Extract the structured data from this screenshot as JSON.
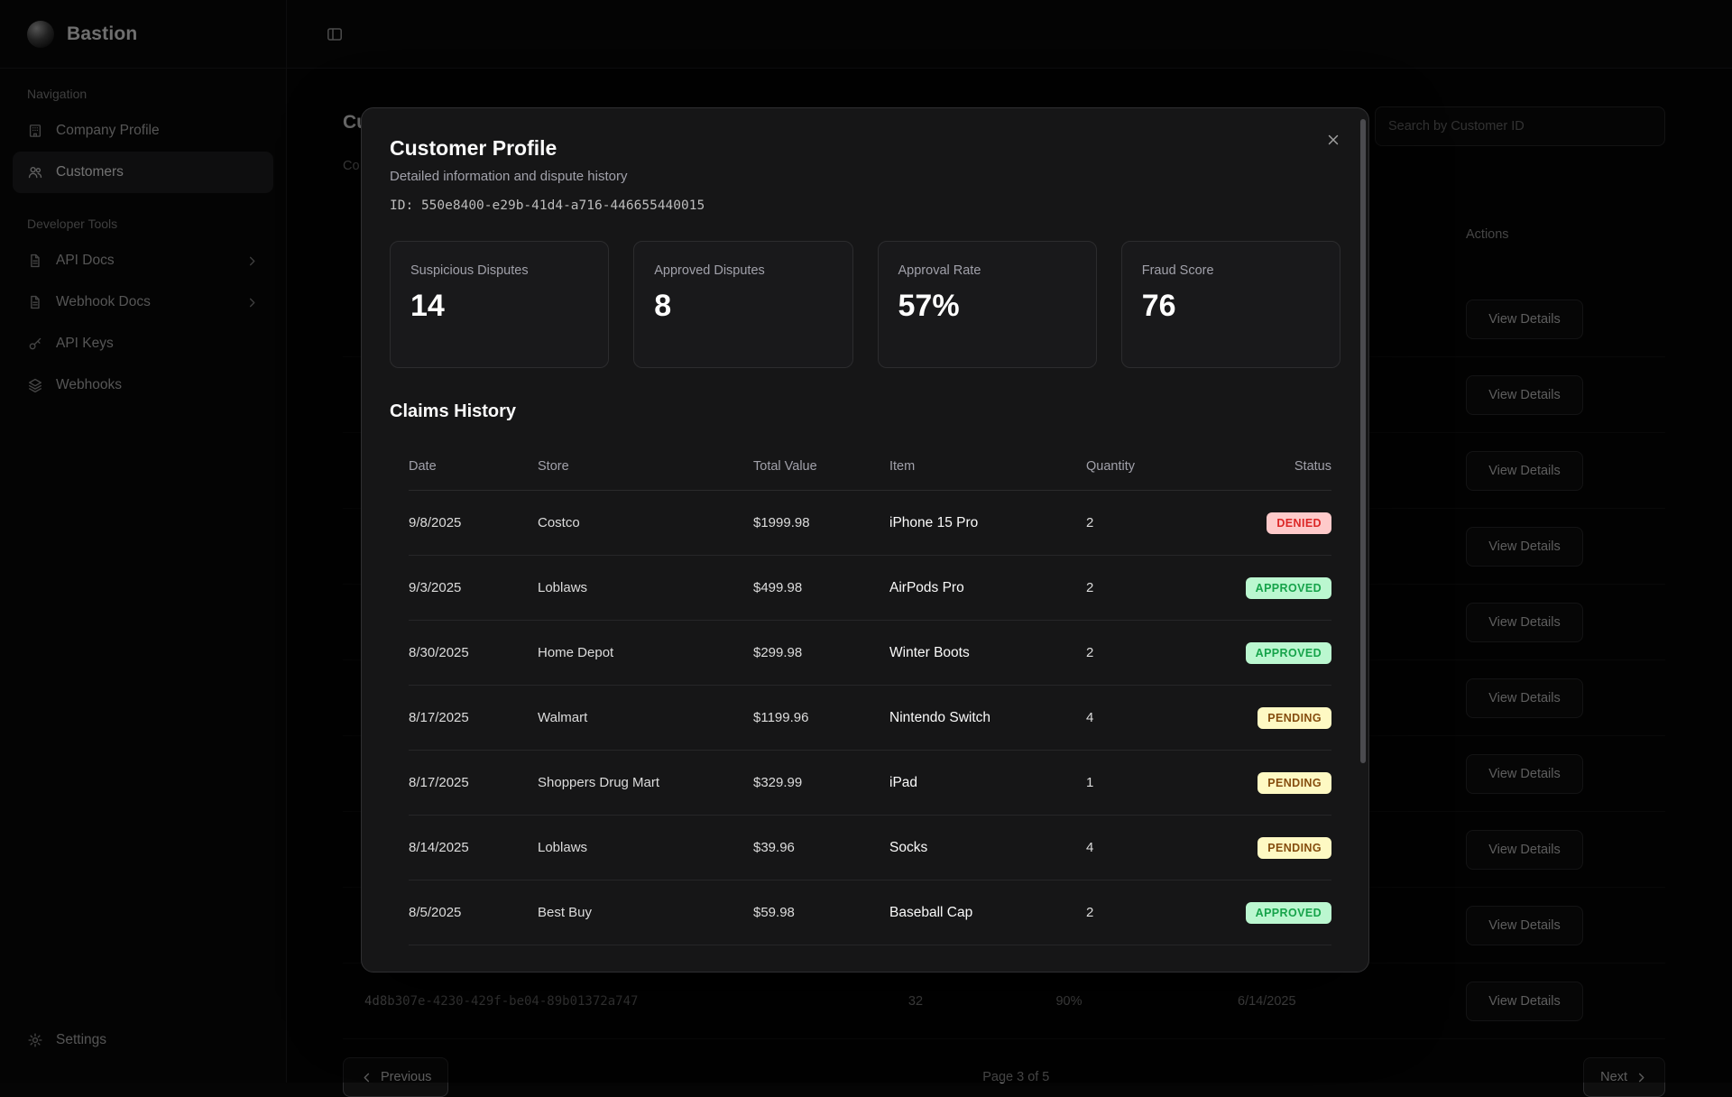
{
  "app": {
    "name": "Bastion"
  },
  "sidebar": {
    "sections": [
      {
        "label": "Navigation",
        "items": [
          {
            "label": "Company Profile",
            "icon": "building"
          },
          {
            "label": "Customers",
            "icon": "users",
            "active": true
          }
        ]
      },
      {
        "label": "Developer Tools",
        "items": [
          {
            "label": "API Docs",
            "icon": "document",
            "chevron": true
          },
          {
            "label": "Webhook Docs",
            "icon": "document",
            "chevron": true
          },
          {
            "label": "API Keys",
            "icon": "key"
          },
          {
            "label": "Webhooks",
            "icon": "layers"
          }
        ]
      }
    ],
    "settings_label": "Settings"
  },
  "page": {
    "title": "Customers",
    "subtitle": "Co",
    "search_placeholder": "Search by Customer ID",
    "table": {
      "actions_header": "Actions",
      "view_details_label": "View Details",
      "action_rows": 10,
      "visible_row": {
        "customer_id": "4d8b307e-4230-429f-be04-89b01372a747",
        "disputes": "32",
        "approval_rate": "90%",
        "date": "6/14/2025"
      }
    },
    "pagination": {
      "previous_label": "Previous",
      "status": "Page 3 of 5",
      "next_label": "Next"
    }
  },
  "modal": {
    "title": "Customer Profile",
    "subtitle": "Detailed information and dispute history",
    "id_label": "ID:",
    "id_value": "550e8400-e29b-41d4-a716-446655440015",
    "stats": [
      {
        "label": "Suspicious Disputes",
        "value": "14"
      },
      {
        "label": "Approved Disputes",
        "value": "8"
      },
      {
        "label": "Approval Rate",
        "value": "57%"
      },
      {
        "label": "Fraud Score",
        "value": "76"
      }
    ],
    "claims": {
      "title": "Claims History",
      "columns": [
        "Date",
        "Store",
        "Total Value",
        "Item",
        "Quantity",
        "Status"
      ],
      "rows": [
        {
          "date": "9/8/2025",
          "store": "Costco",
          "total": "$1999.98",
          "item": "iPhone 15 Pro",
          "qty": "2",
          "status": "DENIED"
        },
        {
          "date": "9/3/2025",
          "store": "Loblaws",
          "total": "$499.98",
          "item": "AirPods Pro",
          "qty": "2",
          "status": "APPROVED"
        },
        {
          "date": "8/30/2025",
          "store": "Home Depot",
          "total": "$299.98",
          "item": "Winter Boots",
          "qty": "2",
          "status": "APPROVED"
        },
        {
          "date": "8/17/2025",
          "store": "Walmart",
          "total": "$1199.96",
          "item": "Nintendo Switch",
          "qty": "4",
          "status": "PENDING"
        },
        {
          "date": "8/17/2025",
          "store": "Shoppers Drug Mart",
          "total": "$329.99",
          "item": "iPad",
          "qty": "1",
          "status": "PENDING"
        },
        {
          "date": "8/14/2025",
          "store": "Loblaws",
          "total": "$39.96",
          "item": "Socks",
          "qty": "4",
          "status": "PENDING"
        },
        {
          "date": "8/5/2025",
          "store": "Best Buy",
          "total": "$59.98",
          "item": "Baseball Cap",
          "qty": "2",
          "status": "APPROVED"
        }
      ]
    }
  },
  "colors": {
    "denied_bg": "#fecaca",
    "denied_text": "#dc2626",
    "approved_bg": "#bbf7d0",
    "approved_text": "#16a34a",
    "pending_bg": "#fef9c3",
    "pending_text": "#854d0e",
    "modal_bg": "#161617",
    "page_bg": "#050505",
    "border": "#2c2c2e"
  }
}
